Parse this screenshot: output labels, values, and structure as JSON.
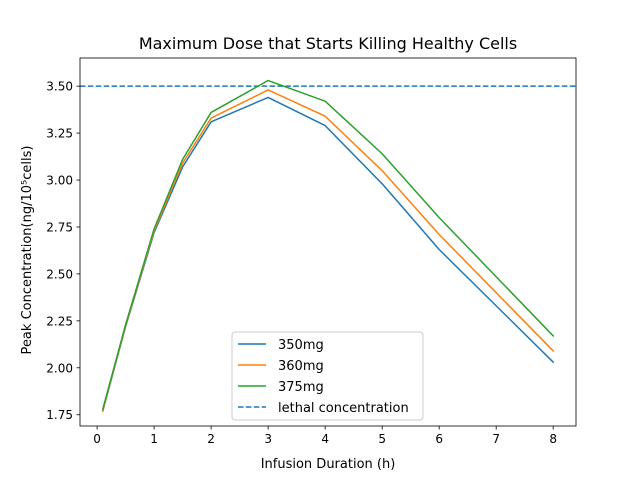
{
  "chart_data": {
    "type": "line",
    "title": "Maximum Dose that Starts Killing Healthy Cells",
    "xlabel": "Infusion Duration (h)",
    "ylabel": "Peak Concentration(ng/10⁵cells)",
    "xlim": [
      -0.3,
      8.4
    ],
    "ylim": [
      1.69,
      3.65
    ],
    "xticks": [
      0,
      1,
      2,
      3,
      4,
      5,
      6,
      7,
      8
    ],
    "yticks": [
      1.75,
      2.0,
      2.25,
      2.5,
      2.75,
      3.0,
      3.25,
      3.5
    ],
    "grid": false,
    "legend_position": "lower-center",
    "x": [
      0.1,
      0.5,
      1,
      1.5,
      2,
      3,
      4,
      5,
      6,
      8
    ],
    "series": [
      {
        "name": "350mg",
        "color": "#1f77b4",
        "style": "solid",
        "values": [
          1.77,
          2.22,
          2.72,
          3.07,
          3.31,
          3.44,
          3.29,
          2.98,
          2.63,
          2.03
        ]
      },
      {
        "name": "360mg",
        "color": "#ff7f0e",
        "style": "solid",
        "values": [
          1.775,
          2.225,
          2.73,
          3.09,
          3.33,
          3.48,
          3.34,
          3.05,
          2.71,
          2.09
        ]
      },
      {
        "name": "375mg",
        "color": "#2ca02c",
        "style": "solid",
        "values": [
          1.78,
          2.23,
          2.74,
          3.11,
          3.36,
          3.53,
          3.42,
          3.14,
          2.8,
          2.17
        ]
      }
    ],
    "reference_lines": [
      {
        "name": "lethal concentration",
        "color": "#1f77b4",
        "style": "dashed",
        "y": 3.5
      }
    ]
  }
}
